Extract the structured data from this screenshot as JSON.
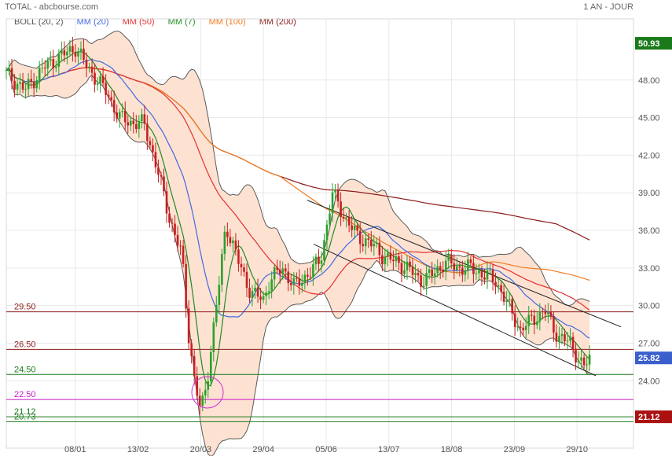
{
  "header": {
    "left": "TOTAL - abcbourse.com",
    "right": "1 AN - JOUR"
  },
  "legend": [
    {
      "label": "BOLL (20, 2)",
      "color": "#555555"
    },
    {
      "label": "MM (20)",
      "color": "#4169e1"
    },
    {
      "label": "MM (50)",
      "color": "#e53030"
    },
    {
      "label": "MM (7)",
      "color": "#228b22"
    },
    {
      "label": "MM (100)",
      "color": "#f07c22"
    },
    {
      "label": "MM (200)",
      "color": "#8b1a1a"
    }
  ],
  "chart_data": {
    "type": "candlestick",
    "ylim": [
      20,
      52
    ],
    "y_ticks": [
      "48.00",
      "45.00",
      "42.00",
      "39.00",
      "36.00",
      "33.00",
      "30.00",
      "27.00",
      "24.00"
    ],
    "x_ticks": [
      "08/01",
      "13/02",
      "20/03",
      "29/04",
      "05/06",
      "13/07",
      "18/08",
      "23/09",
      "29/10"
    ],
    "last_price": "25.82",
    "high_badge": "50.93",
    "low_badge": "21.12",
    "colors": {
      "up": "#2ca02c",
      "down": "#c62020",
      "bollinger_fill": "#fde2d2",
      "bollinger_line": "#5a5a5a",
      "badge_green": "#1a7a1a",
      "badge_red": "#aa1111",
      "badge_blue": "#3a5fcd"
    },
    "horizontal_lines": [
      {
        "label": "29.50",
        "value": 29.5,
        "color": "#8b1a1a"
      },
      {
        "label": "26.50",
        "value": 26.5,
        "color": "#8b1a1a"
      },
      {
        "label": "24.50",
        "value": 24.5,
        "color": "#1a7a1a"
      },
      {
        "label": "22.50",
        "value": 22.5,
        "color": "#c71ac7"
      },
      {
        "label": "21.12",
        "value": 21.12,
        "color": "#1a7a1a"
      },
      {
        "label": "20.73",
        "value": 20.73,
        "color": "#1a7a1a"
      }
    ],
    "channel_lines": [
      {
        "from": [
          0.48,
          38.4
        ],
        "to": [
          0.98,
          28.3
        ]
      },
      {
        "from": [
          0.49,
          34.9
        ],
        "to": [
          0.94,
          24.4
        ]
      }
    ],
    "anchors": [
      [
        0.0,
        48.5
      ],
      [
        0.03,
        47.2
      ],
      [
        0.06,
        49.0
      ],
      [
        0.09,
        50.0
      ],
      [
        0.11,
        50.6
      ],
      [
        0.13,
        49.0
      ],
      [
        0.16,
        47.0
      ],
      [
        0.18,
        45.0
      ],
      [
        0.2,
        44.6
      ],
      [
        0.22,
        44.5
      ],
      [
        0.24,
        41.0
      ],
      [
        0.26,
        37.0
      ],
      [
        0.28,
        34.0
      ],
      [
        0.29,
        28.0
      ],
      [
        0.3,
        24.0
      ],
      [
        0.31,
        21.5
      ],
      [
        0.32,
        24.0
      ],
      [
        0.33,
        28.0
      ],
      [
        0.34,
        32.0
      ],
      [
        0.35,
        36.5
      ],
      [
        0.37,
        33.5
      ],
      [
        0.39,
        31.0
      ],
      [
        0.41,
        30.5
      ],
      [
        0.42,
        32.0
      ],
      [
        0.44,
        33.0
      ],
      [
        0.46,
        31.5
      ],
      [
        0.48,
        32.5
      ],
      [
        0.5,
        33.5
      ],
      [
        0.51,
        36.0
      ],
      [
        0.52,
        39.0
      ],
      [
        0.54,
        37.0
      ],
      [
        0.56,
        35.5
      ],
      [
        0.58,
        35.0
      ],
      [
        0.6,
        34.0
      ],
      [
        0.62,
        33.5
      ],
      [
        0.64,
        33.0
      ],
      [
        0.66,
        32.0
      ],
      [
        0.68,
        32.5
      ],
      [
        0.7,
        33.5
      ],
      [
        0.72,
        33.0
      ],
      [
        0.74,
        33.0
      ],
      [
        0.76,
        32.5
      ],
      [
        0.78,
        32.0
      ],
      [
        0.8,
        30.0
      ],
      [
        0.82,
        28.0
      ],
      [
        0.84,
        29.0
      ],
      [
        0.86,
        29.5
      ],
      [
        0.88,
        27.5
      ],
      [
        0.9,
        27.0
      ],
      [
        0.92,
        25.0
      ],
      [
        0.93,
        25.8
      ]
    ]
  }
}
